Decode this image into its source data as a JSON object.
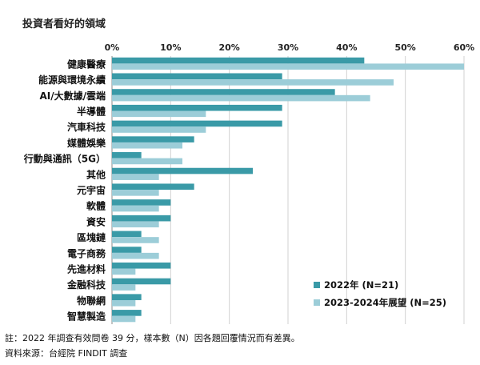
{
  "chart_data": {
    "type": "bar",
    "orientation": "horizontal",
    "title": "投資者看好的領域",
    "categories": [
      "健康醫療",
      "能源與環境永續",
      "AI/大數據/雲端",
      "半導體",
      "汽車科技",
      "媒體娛樂",
      "行動與通訊（5G）",
      "其他",
      "元宇宙",
      "軟體",
      "資安",
      "區塊鏈",
      "電子商務",
      "先進材料",
      "金融科技",
      "物聯網",
      "智慧製造"
    ],
    "series": [
      {
        "name": "2022年 (N=21)",
        "color": "#3a9aa7",
        "values": [
          43,
          29,
          38,
          29,
          29,
          14,
          5,
          24,
          14,
          10,
          10,
          5,
          5,
          10,
          10,
          5,
          5
        ]
      },
      {
        "name": "2023-2024年展望 (N=25)",
        "color": "#9ccdd8",
        "values": [
          60,
          48,
          44,
          16,
          16,
          12,
          12,
          8,
          8,
          8,
          8,
          8,
          8,
          4,
          4,
          4,
          4
        ]
      }
    ],
    "xlim": [
      0,
      60
    ],
    "xticks": [
      "0%",
      "10%",
      "20%",
      "30%",
      "40%",
      "50%",
      "60%"
    ],
    "grid": true,
    "legend_position": "bottom-right"
  },
  "footer": {
    "note": "註：2022 年調查有效問卷 39 分，樣本數（N）因各題回覆情況而有差異。",
    "source": "資料來源：台經院 FINDIT 調查"
  }
}
